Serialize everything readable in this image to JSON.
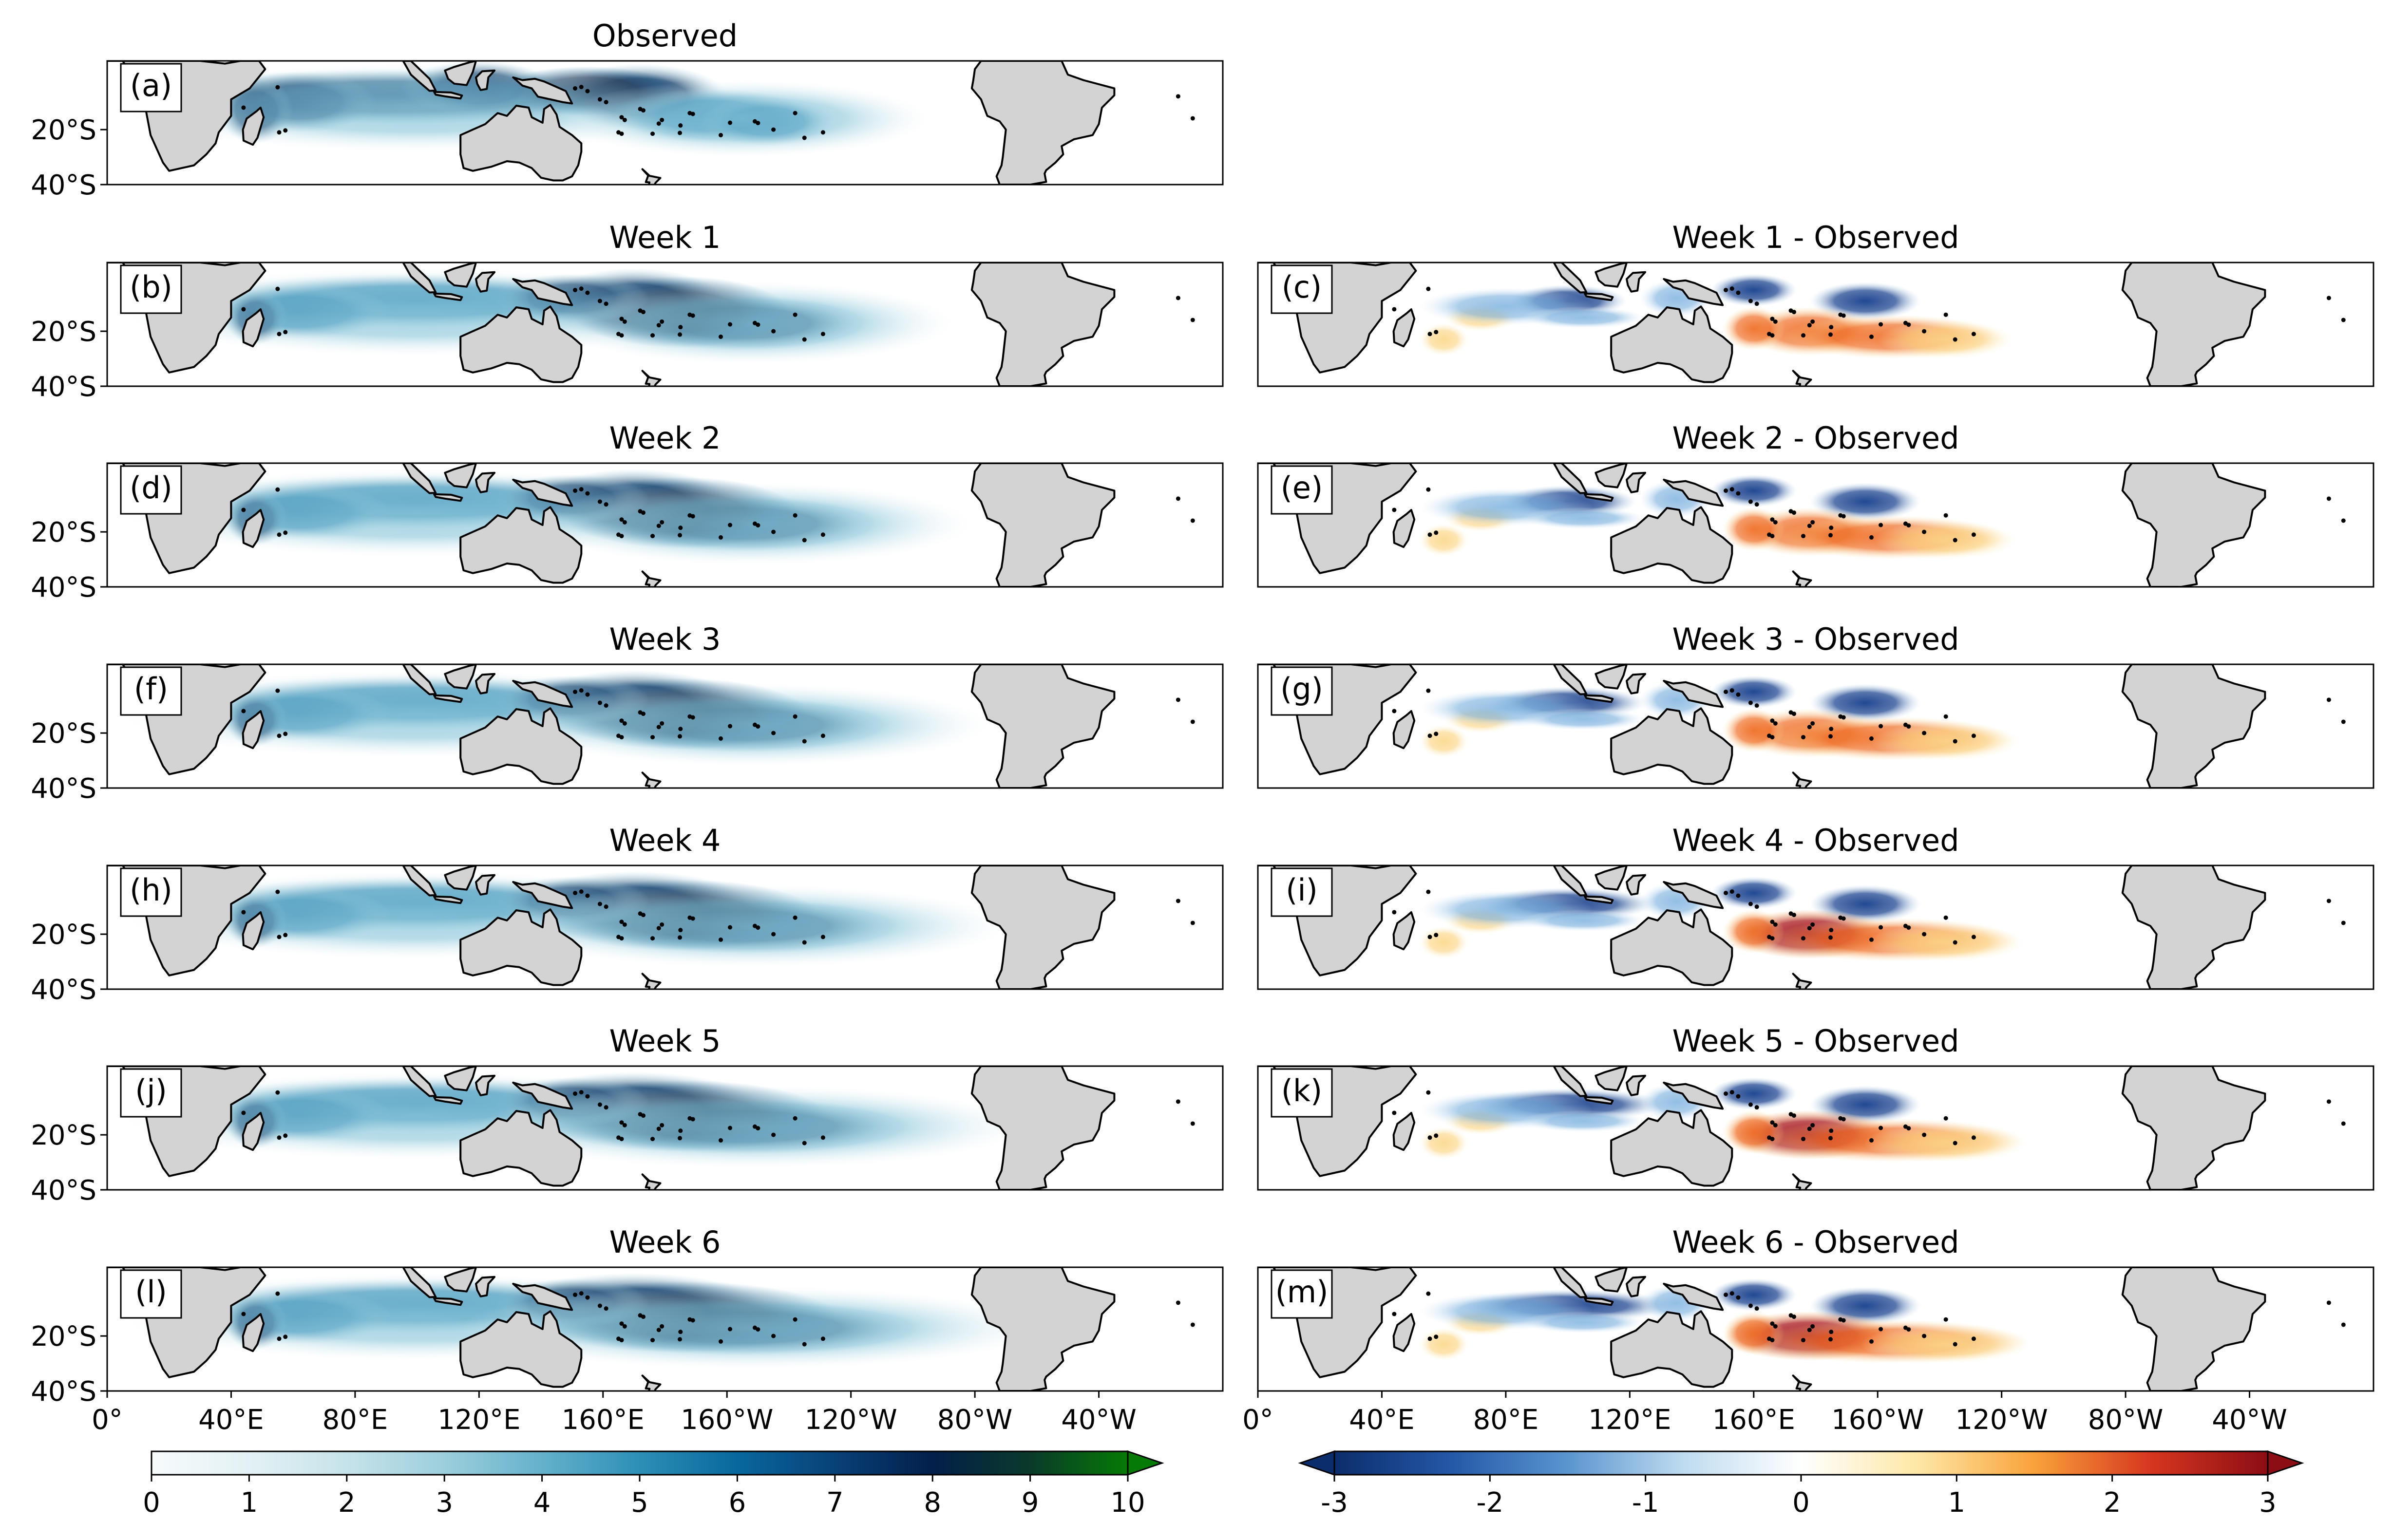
{
  "figure": {
    "left_column": [
      {
        "panel": "(a)",
        "title": "Observed"
      },
      {
        "panel": "(b)",
        "title": "Week 1"
      },
      {
        "panel": "(d)",
        "title": "Week 2"
      },
      {
        "panel": "(f)",
        "title": "Week 3"
      },
      {
        "panel": "(h)",
        "title": "Week 4"
      },
      {
        "panel": "(j)",
        "title": "Week 5"
      },
      {
        "panel": "(l)",
        "title": "Week 6"
      }
    ],
    "right_column": [
      {
        "panel": "(c)",
        "title": "Week 1 - Observed"
      },
      {
        "panel": "(e)",
        "title": "Week 2 - Observed"
      },
      {
        "panel": "(g)",
        "title": "Week 3 - Observed"
      },
      {
        "panel": "(i)",
        "title": "Week 4 - Observed"
      },
      {
        "panel": "(k)",
        "title": "Week 5 - Observed"
      },
      {
        "panel": "(m)",
        "title": "Week 6 - Observed"
      }
    ],
    "lat_ticks": [
      "20°S",
      "40°S"
    ],
    "lon_ticks": [
      "0°",
      "40°E",
      "80°E",
      "120°E",
      "160°E",
      "160°W",
      "120°W",
      "80°W",
      "40°W"
    ],
    "colorbar_left": {
      "ticks": [
        "0",
        "1",
        "2",
        "3",
        "4",
        "5",
        "6",
        "7",
        "8",
        "9",
        "10"
      ],
      "colors": [
        "#f7fbfc",
        "#e3f1f4",
        "#c6e3ea",
        "#9ccfdc",
        "#64b1cb",
        "#2d8fb6",
        "#08689d",
        "#084178",
        "#031f4a",
        "#0a3a2a",
        "#067a06"
      ],
      "extend": "max"
    },
    "colorbar_right": {
      "ticks": [
        "-3",
        "-2",
        "-1",
        "0",
        "1",
        "2",
        "3"
      ],
      "colors": [
        "#0c2d6b",
        "#2458a8",
        "#5b95cf",
        "#bfdcf0",
        "#ffffff",
        "#fde8a6",
        "#f9a23a",
        "#d6361f",
        "#8c0d14"
      ],
      "extend": "both"
    },
    "colors": {
      "land": "#d3d3d3",
      "coast": "#000000",
      "frame": "#000000"
    }
  }
}
